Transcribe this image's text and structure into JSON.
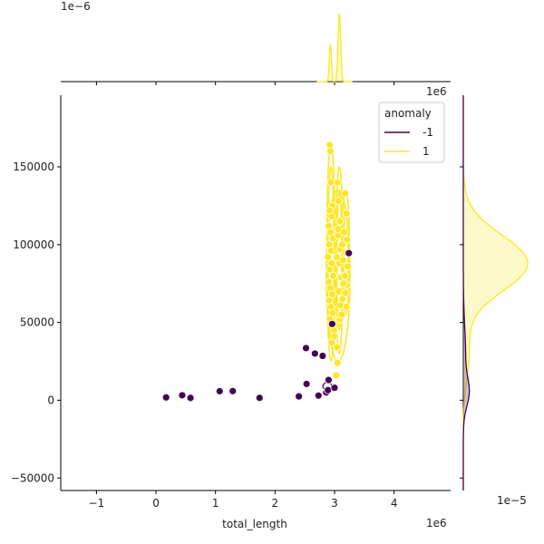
{
  "chart_data": {
    "type": "scatter",
    "xlabel": "total_length",
    "ylabel": "",
    "x_offset_label": "1e6",
    "y_offset_label": "1e6",
    "top_offset_label": "1e−6",
    "right_offset_label": "1e−5",
    "xlim": [
      -1.6,
      4.95
    ],
    "ylim": [
      -58000,
      196000
    ],
    "x_ticks": [
      -1,
      0,
      1,
      2,
      3,
      4
    ],
    "y_ticks": [
      -50000,
      0,
      50000,
      100000,
      150000
    ],
    "x_tick_labels": [
      "−1",
      "0",
      "1",
      "2",
      "3",
      "4"
    ],
    "y_tick_labels": [
      "−50000",
      "0",
      "50000",
      "100000",
      "150000"
    ],
    "legend": {
      "title": "anomaly",
      "placement": "top-right",
      "entries": [
        {
          "label": "-1",
          "color": "#440154"
        },
        {
          "label": "1",
          "color": "#fde725"
        }
      ]
    },
    "series": [
      {
        "name": "-1",
        "color": "#440154",
        "points": [
          [
            0.17,
            1800
          ],
          [
            0.44,
            3200
          ],
          [
            0.58,
            1500
          ],
          [
            1.07,
            5800
          ],
          [
            1.29,
            5900
          ],
          [
            1.74,
            1500
          ],
          [
            2.4,
            2500
          ],
          [
            2.52,
            33500
          ],
          [
            2.53,
            10500
          ],
          [
            2.67,
            30000
          ],
          [
            2.73,
            3000
          ],
          [
            2.8,
            28500
          ],
          [
            2.86,
            5000
          ],
          [
            2.89,
            6500
          ],
          [
            2.9,
            13000
          ],
          [
            2.96,
            49000
          ],
          [
            3.0,
            8000
          ],
          [
            3.24,
            94500
          ]
        ]
      },
      {
        "name": "1",
        "color": "#fde725",
        "points": [
          [
            2.92,
            164000
          ],
          [
            2.93,
            160000
          ],
          [
            2.94,
            140000
          ],
          [
            2.96,
            125000
          ],
          [
            2.92,
            122000
          ],
          [
            2.95,
            118000
          ],
          [
            2.9,
            112000
          ],
          [
            2.93,
            108000
          ],
          [
            2.97,
            104000
          ],
          [
            2.91,
            100000
          ],
          [
            2.94,
            96000
          ],
          [
            2.89,
            92000
          ],
          [
            2.95,
            88000
          ],
          [
            2.92,
            84000
          ],
          [
            2.98,
            80000
          ],
          [
            2.9,
            76000
          ],
          [
            2.93,
            72000
          ],
          [
            2.96,
            68000
          ],
          [
            2.91,
            64000
          ],
          [
            2.94,
            60000
          ],
          [
            2.97,
            56000
          ],
          [
            2.92,
            52000
          ],
          [
            2.99,
            45000
          ],
          [
            3.0,
            41000
          ],
          [
            2.95,
            37000
          ],
          [
            3.05,
            140000
          ],
          [
            3.07,
            128000
          ],
          [
            3.09,
            115000
          ],
          [
            3.06,
            106000
          ],
          [
            3.1,
            97000
          ],
          [
            3.08,
            88000
          ],
          [
            3.11,
            79000
          ],
          [
            3.07,
            70000
          ],
          [
            3.1,
            61000
          ],
          [
            3.09,
            52000
          ],
          [
            3.04,
            34000
          ],
          [
            3.05,
            24000
          ],
          [
            3.03,
            16000
          ],
          [
            3.06,
            110000
          ],
          [
            3.04,
            92000
          ],
          [
            3.18,
            133000
          ],
          [
            3.2,
            120000
          ],
          [
            3.16,
            108000
          ],
          [
            3.21,
            103000
          ],
          [
            3.19,
            95000
          ],
          [
            3.22,
            86000
          ],
          [
            3.17,
            80000
          ],
          [
            3.21,
            74000
          ],
          [
            3.18,
            69000
          ],
          [
            3.2,
            60000
          ],
          [
            3.13,
            100000
          ],
          [
            3.14,
            90000
          ],
          [
            3.15,
            75000
          ],
          [
            3.13,
            65000
          ],
          [
            3.12,
            55000
          ]
        ]
      }
    ],
    "marginal_top": {
      "series": [
        {
          "name": "1",
          "color": "#fde725",
          "peaks": [
            {
              "x": 2.93,
              "h": 0.55,
              "w": 0.018
            },
            {
              "x": 3.08,
              "h": 1.0,
              "w": 0.022
            }
          ]
        }
      ]
    },
    "marginal_right": {
      "series": [
        {
          "name": "-1",
          "color": "#440154",
          "peaks": [
            {
              "y": 5000,
              "h": 0.08,
              "w": 9000
            },
            {
              "y": 30000,
              "h": 0.035,
              "w": 18000
            }
          ]
        },
        {
          "name": "1",
          "color": "#fde725",
          "peaks": [
            {
              "y": 88000,
              "h": 1.0,
              "w": 18000
            },
            {
              "y": 30000,
              "h": 0.09,
              "w": 16000
            }
          ]
        }
      ]
    }
  }
}
